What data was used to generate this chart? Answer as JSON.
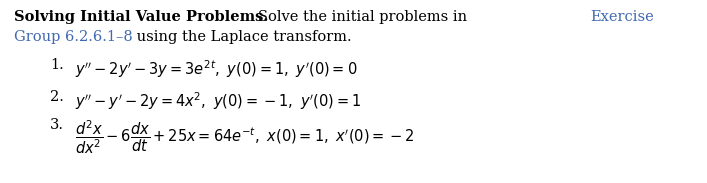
{
  "figsize": [
    7.07,
    1.83
  ],
  "dpi": 100,
  "bg_color": "#ffffff",
  "link_color": "#4169B0",
  "text_color": "#000000",
  "font_size": 10.5,
  "header": {
    "bold": "Solving Initial Value Problems.",
    "normal": "   Solve the initial problems in ",
    "link1": "Exercise",
    "link2": "Group 6.2.6.1–8",
    "tail": " using the Laplace transform."
  },
  "items": [
    {
      "number": "1.",
      "formula": "$y'' - 2y' - 3y = 3e^{2t},\\ y(0) = 1,\\ y'(0) = 0$"
    },
    {
      "number": "2.",
      "formula": "$y'' - y' - 2y = 4x^2,\\ y(0) = -1,\\ y'(0) = 1$"
    },
    {
      "number": "3.",
      "formula": "$\\dfrac{d^2x}{dx^2} - 6\\dfrac{dx}{dt} + 25x = 64e^{-t},\\ x(0) = 1,\\ x'(0) = -2$"
    }
  ]
}
